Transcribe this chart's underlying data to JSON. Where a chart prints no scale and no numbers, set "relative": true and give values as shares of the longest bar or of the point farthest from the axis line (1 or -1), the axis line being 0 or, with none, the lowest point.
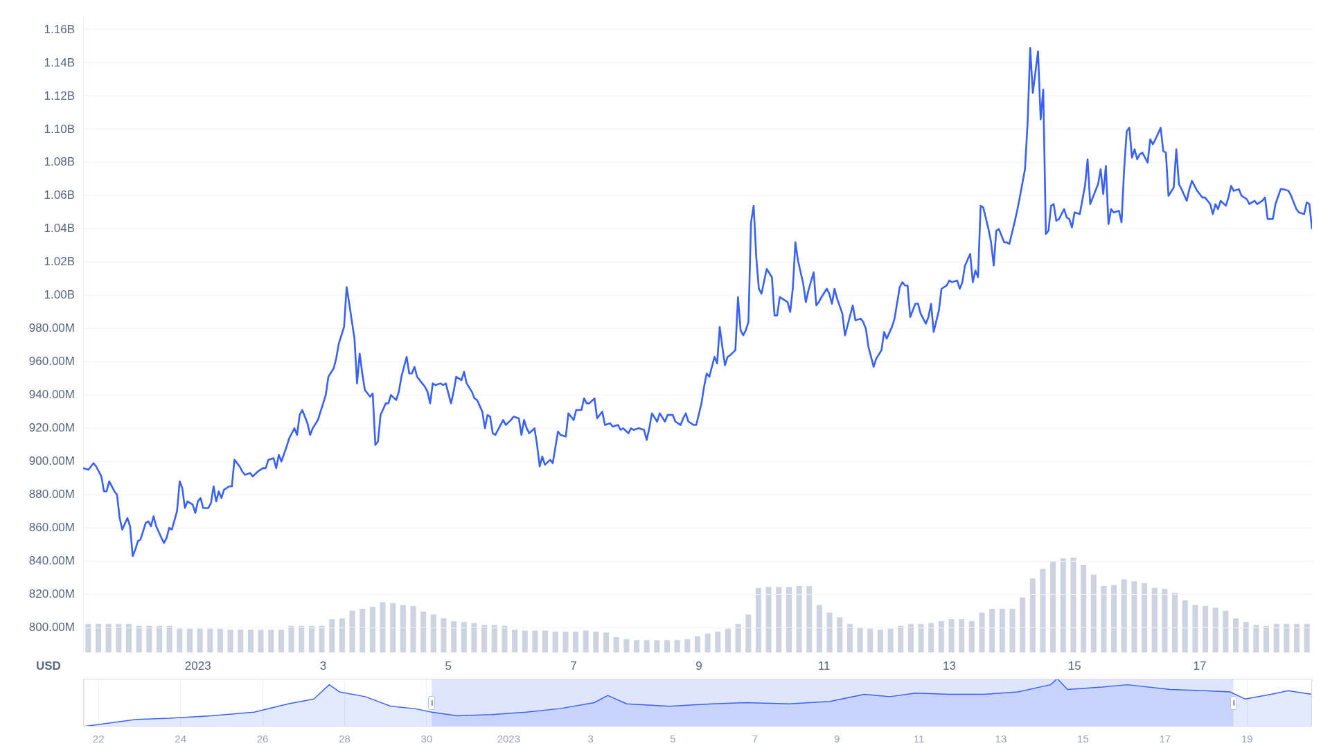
{
  "chart_data": [
    {
      "type": "line",
      "ylabel": "USD",
      "grid": "y",
      "ylim": [
        785000000.0,
        1167500000.0
      ],
      "yticks": [
        {
          "value": 800000000.0,
          "label": "800.00M"
        },
        {
          "value": 820000000.0,
          "label": "820.00M"
        },
        {
          "value": 840000000.0,
          "label": "840.00M"
        },
        {
          "value": 860000000.0,
          "label": "860.00M"
        },
        {
          "value": 880000000.0,
          "label": "880.00M"
        },
        {
          "value": 900000000.0,
          "label": "900.00M"
        },
        {
          "value": 920000000.0,
          "label": "920.00M"
        },
        {
          "value": 940000000.0,
          "label": "940.00M"
        },
        {
          "value": 960000000.0,
          "label": "960.00M"
        },
        {
          "value": 980000000.0,
          "label": "980.00M"
        },
        {
          "value": 1000000000.0,
          "label": "1.00B"
        },
        {
          "value": 1020000000.0,
          "label": "1.02B"
        },
        {
          "value": 1040000000.0,
          "label": "1.04B"
        },
        {
          "value": 1060000000.0,
          "label": "1.06B"
        },
        {
          "value": 1080000000.0,
          "label": "1.08B"
        },
        {
          "value": 1100000000.0,
          "label": "1.10B"
        },
        {
          "value": 1120000000.0,
          "label": "1.12B"
        },
        {
          "value": 1140000000.0,
          "label": "1.14B"
        },
        {
          "value": 1160000000.0,
          "label": "1.16B"
        }
      ],
      "xlim": [
        "2022-12-30T04:00",
        "2023-01-18T19:00"
      ],
      "xticks": [
        {
          "value": "2023-01-01",
          "label": "2023"
        },
        {
          "value": "2023-01-03",
          "label": "3"
        },
        {
          "value": "2023-01-05",
          "label": "5"
        },
        {
          "value": "2023-01-07",
          "label": "7"
        },
        {
          "value": "2023-01-09",
          "label": "9"
        },
        {
          "value": "2023-01-11",
          "label": "11"
        },
        {
          "value": "2023-01-13",
          "label": "13"
        },
        {
          "value": "2023-01-15",
          "label": "15"
        },
        {
          "value": "2023-01-17",
          "label": "17"
        }
      ],
      "series": [
        {
          "color": "#3861fb",
          "x": [
            "2022-12-30T04:00",
            "2022-12-30T06:00",
            "2022-12-30T08:00",
            "2022-12-30T09:00",
            "2022-12-30T11:00",
            "2022-12-30T12:00",
            "2022-12-30T13:00",
            "2022-12-30T14:00",
            "2022-12-30T16:00",
            "2022-12-30T17:00",
            "2022-12-30T18:00",
            "2022-12-30T19:00",
            "2022-12-30T21:00",
            "2022-12-30T22:00",
            "2022-12-30T23:00",
            "2022-12-31T00:00",
            "2022-12-31T01:00",
            "2022-12-31T02:00",
            "2022-12-31T04:00",
            "2022-12-31T05:00",
            "2022-12-31T06:00",
            "2022-12-31T07:00",
            "2022-12-31T08:00",
            "2022-12-31T10:00",
            "2022-12-31T11:00",
            "2022-12-31T12:00",
            "2022-12-31T13:00",
            "2022-12-31T14:00",
            "2022-12-31T16:00",
            "2022-12-31T17:00",
            "2022-12-31T18:00",
            "2022-12-31T19:00",
            "2022-12-31T20:00",
            "2022-12-31T22:00",
            "2022-12-31T23:00",
            "2023-01-01T00:00",
            "2023-01-01T01:00",
            "2023-01-01T02:00",
            "2023-01-01T04:00",
            "2023-01-01T05:00",
            "2023-01-01T06:00",
            "2023-01-01T07:00",
            "2023-01-01T08:00",
            "2023-01-01T09:00",
            "2023-01-01T10:00",
            "2023-01-01T12:00",
            "2023-01-01T13:00",
            "2023-01-01T14:00",
            "2023-01-01T16:00",
            "2023-01-01T17:00",
            "2023-01-01T18:00",
            "2023-01-01T20:00",
            "2023-01-01T21:00",
            "2023-01-01T23:00",
            "2023-01-02T01:00",
            "2023-01-02T02:00",
            "2023-01-02T03:00",
            "2023-01-02T05:00",
            "2023-01-02T06:00",
            "2023-01-02T07:00",
            "2023-01-02T08:00",
            "2023-01-02T10:00",
            "2023-01-02T11:00",
            "2023-01-02T13:00",
            "2023-01-02T14:00",
            "2023-01-02T15:00",
            "2023-01-02T16:00",
            "2023-01-02T18:00",
            "2023-01-02T19:00",
            "2023-01-02T20:00",
            "2023-01-02T22:00",
            "2023-01-02T23:00",
            "2023-01-03T01:00",
            "2023-01-03T02:00",
            "2023-01-03T04:00",
            "2023-01-03T05:00",
            "2023-01-03T06:00",
            "2023-01-03T08:00",
            "2023-01-03T09:00",
            "2023-01-03T10:00",
            "2023-01-03T12:00",
            "2023-01-03T13:00",
            "2023-01-03T14:00",
            "2023-01-03T15:00",
            "2023-01-03T16:00",
            "2023-01-03T18:00",
            "2023-01-03T19:00",
            "2023-01-03T20:00",
            "2023-01-03T21:00",
            "2023-01-03T22:00",
            "2023-01-04T00:00",
            "2023-01-04T01:00",
            "2023-01-04T02:00",
            "2023-01-04T04:00",
            "2023-01-04T05:00",
            "2023-01-04T06:00",
            "2023-01-04T08:00",
            "2023-01-04T09:00",
            "2023-01-04T10:00",
            "2023-01-04T11:00",
            "2023-01-04T12:00",
            "2023-01-04T14:00",
            "2023-01-04T15:00",
            "2023-01-04T16:00",
            "2023-01-04T17:00",
            "2023-01-04T18:00",
            "2023-01-04T19:00",
            "2023-01-04T21:00",
            "2023-01-04T22:00",
            "2023-01-04T23:00",
            "2023-01-05T01:00",
            "2023-01-05T02:00",
            "2023-01-05T03:00",
            "2023-01-05T05:00",
            "2023-01-05T06:00",
            "2023-01-05T07:00",
            "2023-01-05T09:00",
            "2023-01-05T10:00",
            "2023-01-05T11:00",
            "2023-01-05T13:00",
            "2023-01-05T14:00",
            "2023-01-05T15:00",
            "2023-01-05T16:00",
            "2023-01-05T17:00",
            "2023-01-05T18:00",
            "2023-01-05T20:00",
            "2023-01-05T21:00",
            "2023-01-05T22:00",
            "2023-01-06T00:00",
            "2023-01-06T01:00",
            "2023-01-06T03:00",
            "2023-01-06T04:00",
            "2023-01-06T05:00",
            "2023-01-06T06:00",
            "2023-01-06T07:00",
            "2023-01-06T09:00",
            "2023-01-06T10:00",
            "2023-01-06T11:00",
            "2023-01-06T12:00",
            "2023-01-06T13:00",
            "2023-01-06T15:00",
            "2023-01-06T16:00",
            "2023-01-06T18:00",
            "2023-01-06T19:00",
            "2023-01-06T21:00",
            "2023-01-06T22:00",
            "2023-01-07T00:00",
            "2023-01-07T01:00",
            "2023-01-07T03:00",
            "2023-01-07T04:00",
            "2023-01-07T05:00",
            "2023-01-07T06:00",
            "2023-01-07T08:00",
            "2023-01-07T09:00",
            "2023-01-07T11:00",
            "2023-01-07T12:00",
            "2023-01-07T14:00",
            "2023-01-07T15:00",
            "2023-01-07T17:00",
            "2023-01-07T18:00",
            "2023-01-07T19:00",
            "2023-01-07T21:00",
            "2023-01-07T22:00",
            "2023-01-07T23:00",
            "2023-01-08T01:00",
            "2023-01-08T03:00",
            "2023-01-08T04:00",
            "2023-01-08T05:00",
            "2023-01-08T06:00",
            "2023-01-08T08:00",
            "2023-01-08T09:00",
            "2023-01-08T11:00",
            "2023-01-08T12:00",
            "2023-01-08T14:00",
            "2023-01-08T15:00",
            "2023-01-08T17:00",
            "2023-01-08T18:00",
            "2023-01-08T19:00",
            "2023-01-08T20:00",
            "2023-01-08T22:00",
            "2023-01-08T23:00",
            "2023-01-09T01:00",
            "2023-01-09T02:00",
            "2023-01-09T03:00",
            "2023-01-09T04:00",
            "2023-01-09T06:00",
            "2023-01-09T07:00",
            "2023-01-09T08:00",
            "2023-01-09T09:00",
            "2023-01-09T10:00",
            "2023-01-09T11:00",
            "2023-01-09T12:00",
            "2023-01-09T14:00",
            "2023-01-09T15:00",
            "2023-01-09T16:00",
            "2023-01-09T17:00",
            "2023-01-09T18:00",
            "2023-01-09T19:00",
            "2023-01-09T20:00",
            "2023-01-09T21:00",
            "2023-01-09T22:00",
            "2023-01-09T23:00",
            "2023-01-10T00:00",
            "2023-01-10T02:00",
            "2023-01-10T04:00",
            "2023-01-10T05:00",
            "2023-01-10T06:00",
            "2023-01-10T07:00",
            "2023-01-10T08:00",
            "2023-01-10T10:00",
            "2023-01-10T11:00",
            "2023-01-10T12:00",
            "2023-01-10T13:00",
            "2023-01-10T14:00",
            "2023-01-10T16:00",
            "2023-01-10T17:00",
            "2023-01-10T18:00",
            "2023-01-10T20:00",
            "2023-01-10T21:00",
            "2023-01-10T22:00",
            "2023-01-10T23:00",
            "2023-01-11T01:00",
            "2023-01-11T02:00",
            "2023-01-11T03:00",
            "2023-01-11T04:00",
            "2023-01-11T05:00",
            "2023-01-11T07:00",
            "2023-01-11T08:00",
            "2023-01-11T09:00",
            "2023-01-11T11:00",
            "2023-01-11T12:00",
            "2023-01-11T14:00",
            "2023-01-11T15:00",
            "2023-01-11T16:00",
            "2023-01-11T17:00",
            "2023-01-11T19:00",
            "2023-01-11T20:00",
            "2023-01-11T22:00",
            "2023-01-11T23:00",
            "2023-01-12T00:00",
            "2023-01-12T02:00",
            "2023-01-12T03:00",
            "2023-01-12T05:00",
            "2023-01-12T06:00",
            "2023-01-12T07:00",
            "2023-01-12T08:00",
            "2023-01-12T09:00",
            "2023-01-12T11:00",
            "2023-01-12T12:00",
            "2023-01-12T13:00",
            "2023-01-12T15:00",
            "2023-01-12T16:00",
            "2023-01-12T17:00",
            "2023-01-12T18:00",
            "2023-01-12T20:00",
            "2023-01-12T21:00",
            "2023-01-12T23:00",
            "2023-01-13T00:00",
            "2023-01-13T01:00",
            "2023-01-13T03:00",
            "2023-01-13T04:00",
            "2023-01-13T05:00",
            "2023-01-13T06:00",
            "2023-01-13T08:00",
            "2023-01-13T09:00",
            "2023-01-13T10:00",
            "2023-01-13T11:00",
            "2023-01-13T12:00",
            "2023-01-13T13:00",
            "2023-01-13T15:00",
            "2023-01-13T16:00",
            "2023-01-13T17:00",
            "2023-01-13T18:00",
            "2023-01-13T19:00",
            "2023-01-13T21:00",
            "2023-01-13T22:00",
            "2023-01-13T23:00",
            "2023-01-14T01:00",
            "2023-01-14T02:00",
            "2023-01-14T03:00",
            "2023-01-14T05:00",
            "2023-01-14T06:00",
            "2023-01-14T07:00",
            "2023-01-14T08:00",
            "2023-01-14T10:00",
            "2023-01-14T11:00",
            "2023-01-14T12:00",
            "2023-01-14T13:00",
            "2023-01-14T14:00",
            "2023-01-14T15:00",
            "2023-01-14T16:00",
            "2023-01-14T17:00",
            "2023-01-14T18:00",
            "2023-01-14T20:00",
            "2023-01-14T21:00",
            "2023-01-14T22:00",
            "2023-01-14T23:00",
            "2023-01-15T00:00",
            "2023-01-15T02:00",
            "2023-01-15T04:00",
            "2023-01-15T05:00",
            "2023-01-15T06:00",
            "2023-01-15T08:00",
            "2023-01-15T09:00",
            "2023-01-15T10:00",
            "2023-01-15T11:00",
            "2023-01-15T12:00",
            "2023-01-15T13:00",
            "2023-01-15T14:00",
            "2023-01-15T15:00",
            "2023-01-15T17:00",
            "2023-01-15T18:00",
            "2023-01-15T19:00",
            "2023-01-15T20:00",
            "2023-01-15T21:00",
            "2023-01-15T22:00",
            "2023-01-15T23:00",
            "2023-01-16T00:00",
            "2023-01-16T01:00",
            "2023-01-16T02:00",
            "2023-01-16T04:00",
            "2023-01-16T05:00",
            "2023-01-16T06:00",
            "2023-01-16T07:00",
            "2023-01-16T09:00",
            "2023-01-16T10:00",
            "2023-01-16T11:00",
            "2023-01-16T12:00",
            "2023-01-16T14:00",
            "2023-01-16T15:00",
            "2023-01-16T16:00",
            "2023-01-16T17:00",
            "2023-01-16T19:00",
            "2023-01-16T20:00",
            "2023-01-16T21:00",
            "2023-01-16T23:00",
            "2023-01-17T01:00",
            "2023-01-17T02:00",
            "2023-01-17T04:00",
            "2023-01-17T05:00",
            "2023-01-17T06:00",
            "2023-01-17T07:00",
            "2023-01-17T08:00",
            "2023-01-17T10:00",
            "2023-01-17T11:00",
            "2023-01-17T12:00",
            "2023-01-17T13:00",
            "2023-01-17T15:00",
            "2023-01-17T16:00",
            "2023-01-17T18:00",
            "2023-01-17T19:00",
            "2023-01-17T21:00",
            "2023-01-17T22:00",
            "2023-01-18T00:00",
            "2023-01-18T01:00",
            "2023-01-18T02:00",
            "2023-01-18T04:00",
            "2023-01-18T05:00",
            "2023-01-18T07:00",
            "2023-01-18T08:00",
            "2023-01-18T10:00",
            "2023-01-18T11:00",
            "2023-01-18T13:00",
            "2023-01-18T14:00",
            "2023-01-18T16:00",
            "2023-01-18T17:00",
            "2023-01-18T18:00",
            "2023-01-18T19:00"
          ],
          "values": [
            896000000.0,
            895000000.0,
            899000000.0,
            897000000.0,
            891000000.0,
            882000000.0,
            882000000.0,
            888000000.0,
            882000000.0,
            880000000.0,
            866000000.0,
            859000000.0,
            866000000.0,
            861000000.0,
            843000000.0,
            847000000.0,
            852000000.0,
            853000000.0,
            863000000.0,
            864000000.0,
            861000000.0,
            867000000.0,
            861000000.0,
            854000000.0,
            851000000.0,
            854000000.0,
            860000000.0,
            859000000.0,
            870000000.0,
            888000000.0,
            884000000.0,
            872000000.0,
            876000000.0,
            874000000.0,
            869000000.0,
            876000000.0,
            878000000.0,
            872000000.0,
            872000000.0,
            875000000.0,
            885000000.0,
            876000000.0,
            882000000.0,
            878000000.0,
            883000000.0,
            885000000.0,
            885000000.0,
            901000000.0,
            897000000.0,
            894000000.0,
            892000000.0,
            893000000.0,
            891000000.0,
            894000000.0,
            896000000.0,
            896000000.0,
            901000000.0,
            902000000.0,
            896000000.0,
            904000000.0,
            900000000.0,
            909000000.0,
            914000000.0,
            920000000.0,
            916000000.0,
            928000000.0,
            931000000.0,
            923000000.0,
            916000000.0,
            920000000.0,
            925000000.0,
            930000000.0,
            940000000.0,
            951000000.0,
            956000000.0,
            962000000.0,
            971000000.0,
            981000000.0,
            1005000000.0,
            995000000.0,
            974000000.0,
            947000000.0,
            965000000.0,
            953000000.0,
            943000000.0,
            939000000.0,
            941000000.0,
            910000000.0,
            912000000.0,
            928000000.0,
            935000000.0,
            935000000.0,
            940000000.0,
            937000000.0,
            942000000.0,
            951000000.0,
            963000000.0,
            953000000.0,
            953000000.0,
            957000000.0,
            951000000.0,
            947000000.0,
            945000000.0,
            942000000.0,
            935000000.0,
            947000000.0,
            946000000.0,
            947000000.0,
            946000000.0,
            947000000.0,
            935000000.0,
            942000000.0,
            951000000.0,
            949000000.0,
            954000000.0,
            947000000.0,
            942000000.0,
            938000000.0,
            937000000.0,
            930000000.0,
            920000000.0,
            928000000.0,
            927000000.0,
            917000000.0,
            916000000.0,
            922000000.0,
            925000000.0,
            922000000.0,
            925000000.0,
            927000000.0,
            926000000.0,
            916000000.0,
            925000000.0,
            920000000.0,
            917000000.0,
            920000000.0,
            910000000.0,
            897000000.0,
            903000000.0,
            898000000.0,
            901000000.0,
            899000000.0,
            918000000.0,
            916000000.0,
            915000000.0,
            929000000.0,
            925000000.0,
            931000000.0,
            931000000.0,
            938000000.0,
            935000000.0,
            935000000.0,
            938000000.0,
            926000000.0,
            930000000.0,
            922000000.0,
            923000000.0,
            921000000.0,
            922000000.0,
            919000000.0,
            920000000.0,
            917000000.0,
            920000000.0,
            919000000.0,
            920000000.0,
            919000000.0,
            913000000.0,
            920000000.0,
            929000000.0,
            924000000.0,
            929000000.0,
            924000000.0,
            928000000.0,
            928000000.0,
            924000000.0,
            922000000.0,
            926000000.0,
            929000000.0,
            924000000.0,
            922000000.0,
            922000000.0,
            935000000.0,
            945000000.0,
            953000000.0,
            951000000.0,
            963000000.0,
            959000000.0,
            981000000.0,
            969000000.0,
            958000000.0,
            963000000.0,
            964000000.0,
            967000000.0,
            999000000.0,
            979000000.0,
            976000000.0,
            979000000.0,
            984000000.0,
            1044000000.0,
            1054000000.0,
            1023000000.0,
            1004000000.0,
            1001000000.0,
            1016000000.0,
            1011000000.0,
            988000000.0,
            988000000.0,
            999000000.0,
            998000000.0,
            996000000.0,
            990000000.0,
            1004000000.0,
            1032000000.0,
            1021000000.0,
            1007000000.0,
            996000000.0,
            1003000000.0,
            1014000000.0,
            994000000.0,
            996000000.0,
            999000000.0,
            1004000000.0,
            1001000000.0,
            995000000.0,
            1004000000.0,
            998000000.0,
            989000000.0,
            976000000.0,
            982000000.0,
            994000000.0,
            985000000.0,
            986000000.0,
            984000000.0,
            980000000.0,
            969000000.0,
            957000000.0,
            962000000.0,
            967000000.0,
            978000000.0,
            974000000.0,
            981000000.0,
            986000000.0,
            1005000000.0,
            1008000000.0,
            1006000000.0,
            1006000000.0,
            987000000.0,
            995000000.0,
            995000000.0,
            989000000.0,
            983000000.0,
            987000000.0,
            995000000.0,
            978000000.0,
            991000000.0,
            1004000000.0,
            1006000000.0,
            1009000000.0,
            1008000000.0,
            1009000000.0,
            1004000000.0,
            1008000000.0,
            1018000000.0,
            1025000000.0,
            1008000000.0,
            1015000000.0,
            1011000000.0,
            1054000000.0,
            1053000000.0,
            1040000000.0,
            1032000000.0,
            1018000000.0,
            1039000000.0,
            1040000000.0,
            1032000000.0,
            1032000000.0,
            1031000000.0,
            1044000000.0,
            1051000000.0,
            1059000000.0,
            1076000000.0,
            1104000000.0,
            1149000000.0,
            1122000000.0,
            1147000000.0,
            1106000000.0,
            1124000000.0,
            1037000000.0,
            1039000000.0,
            1054000000.0,
            1055000000.0,
            1045000000.0,
            1046000000.0,
            1052000000.0,
            1047000000.0,
            1046000000.0,
            1041000000.0,
            1050000000.0,
            1049000000.0,
            1066000000.0,
            1082000000.0,
            1055000000.0,
            1063000000.0,
            1067000000.0,
            1076000000.0,
            1061000000.0,
            1078000000.0,
            1043000000.0,
            1052000000.0,
            1050000000.0,
            1051000000.0,
            1044000000.0,
            1076000000.0,
            1099000000.0,
            1101000000.0,
            1083000000.0,
            1088000000.0,
            1082000000.0,
            1085000000.0,
            1086000000.0,
            1080000000.0,
            1094000000.0,
            1091000000.0,
            1094000000.0,
            1101000000.0,
            1087000000.0,
            1086000000.0,
            1060000000.0,
            1065000000.0,
            1088000000.0,
            1067000000.0,
            1064000000.0,
            1057000000.0,
            1064000000.0,
            1069000000.0,
            1063000000.0,
            1059000000.0,
            1059000000.0,
            1055000000.0,
            1049000000.0,
            1055000000.0,
            1052000000.0,
            1057000000.0,
            1054000000.0,
            1059000000.0,
            1066000000.0,
            1063000000.0,
            1064000000.0,
            1060000000.0,
            1058000000.0,
            1055000000.0,
            1057000000.0,
            1055000000.0,
            1057000000.0,
            1059000000.0,
            1046000000.0,
            1046000000.0,
            1055000000.0,
            1064000000.0,
            1064000000.0,
            1063000000.0,
            1060000000.0,
            1052000000.0,
            1050000000.0,
            1049000000.0,
            1056000000.0,
            1055000000.0,
            1040000000.0
          ]
        }
      ]
    },
    {
      "type": "bar",
      "relative": true,
      "categories": [
        null,
        null,
        null,
        null,
        null,
        null,
        null,
        null,
        null,
        null,
        null,
        null,
        null,
        null,
        null,
        null,
        null,
        null,
        null,
        null,
        null,
        null,
        null,
        null,
        null,
        null,
        null,
        null,
        null,
        null,
        null,
        null,
        null,
        null,
        null,
        null,
        null,
        null,
        null,
        null,
        null,
        null,
        null,
        null,
        null,
        null,
        null,
        null,
        null,
        null,
        null,
        null,
        null,
        null,
        null,
        null,
        null,
        null,
        null,
        null,
        null,
        null,
        null,
        null,
        null,
        null,
        null,
        null,
        null,
        null,
        null,
        null,
        null,
        null,
        null,
        null,
        null,
        null,
        null,
        null,
        null,
        null,
        null,
        null,
        null,
        null,
        null,
        null,
        null,
        null,
        null,
        null,
        null,
        null,
        null,
        null,
        null,
        null,
        null,
        null,
        null,
        null,
        null,
        null,
        null,
        null,
        null,
        null,
        null,
        null,
        null,
        null,
        null,
        null,
        null,
        null,
        null,
        null,
        null,
        null,
        null
      ],
      "series": [
        {
          "color": "#cdd3e1",
          "values": [
            0.3,
            0.3,
            0.3,
            0.3,
            0.3,
            0.28,
            0.28,
            0.28,
            0.28,
            0.25,
            0.25,
            0.25,
            0.25,
            0.25,
            0.24,
            0.24,
            0.24,
            0.24,
            0.24,
            0.24,
            0.28,
            0.28,
            0.28,
            0.28,
            0.35,
            0.36,
            0.44,
            0.46,
            0.48,
            0.53,
            0.52,
            0.5,
            0.49,
            0.43,
            0.4,
            0.36,
            0.33,
            0.32,
            0.31,
            0.29,
            0.29,
            0.28,
            0.24,
            0.23,
            0.23,
            0.23,
            0.22,
            0.22,
            0.22,
            0.23,
            0.22,
            0.21,
            0.16,
            0.14,
            0.13,
            0.13,
            0.13,
            0.13,
            0.13,
            0.14,
            0.17,
            0.2,
            0.22,
            0.25,
            0.3,
            0.4,
            0.68,
            0.69,
            0.69,
            0.69,
            0.7,
            0.7,
            0.5,
            0.42,
            0.37,
            0.3,
            0.26,
            0.25,
            0.24,
            0.25,
            0.28,
            0.3,
            0.3,
            0.31,
            0.33,
            0.35,
            0.35,
            0.33,
            0.42,
            0.46,
            0.46,
            0.46,
            0.58,
            0.78,
            0.88,
            0.96,
            0.99,
            1,
            0.92,
            0.82,
            0.7,
            0.71,
            0.77,
            0.75,
            0.73,
            0.68,
            0.67,
            0.63,
            0.55,
            0.5,
            0.49,
            0.47,
            0.44,
            0.36,
            0.32,
            0.29,
            0.28,
            0.3,
            0.3,
            0.3,
            0.3
          ]
        }
      ]
    },
    {
      "type": "area",
      "relative": true,
      "grid": "x",
      "xlim": [
        "2022-12-21T15:00",
        "2023-01-20T14:00"
      ],
      "xticks": [
        {
          "value": "2022-12-22",
          "label": "22"
        },
        {
          "value": "2022-12-24",
          "label": "24"
        },
        {
          "value": "2022-12-26",
          "label": "26"
        },
        {
          "value": "2022-12-28",
          "label": "28"
        },
        {
          "value": "2022-12-30",
          "label": "30"
        },
        {
          "value": "2023-01-01",
          "label": "2023"
        },
        {
          "value": "2023-01-03",
          "label": "3"
        },
        {
          "value": "2023-01-05",
          "label": "5"
        },
        {
          "value": "2023-01-07",
          "label": "7"
        },
        {
          "value": "2023-01-09",
          "label": "9"
        },
        {
          "value": "2023-01-11",
          "label": "11"
        },
        {
          "value": "2023-01-13",
          "label": "13"
        },
        {
          "value": "2023-01-15",
          "label": "15"
        },
        {
          "value": "2023-01-17",
          "label": "17"
        },
        {
          "value": "2023-01-19",
          "label": "19"
        }
      ],
      "bands": [
        {
          "axis": "x",
          "from": "2022-12-30T03:00",
          "to": "2023-01-18T16:00",
          "color": "#dfe5fc"
        }
      ],
      "series": [
        {
          "color": "#3861fb",
          "x": [
            "2022-12-21T15:00",
            "2022-12-22T07:00",
            "2022-12-22T22:00",
            "2022-12-23T18:00",
            "2022-12-24T18:00",
            "2022-12-25T19:00",
            "2022-12-26T15:00",
            "2022-12-27T06:00",
            "2022-12-27T15:00",
            "2022-12-27T21:00",
            "2022-12-28T12:00",
            "2022-12-29T03:00",
            "2022-12-29T17:00",
            "2022-12-30T03:00",
            "2022-12-30T18:00",
            "2022-12-31T14:00",
            "2023-01-01T10:00",
            "2023-01-02T06:00",
            "2023-01-03T02:00",
            "2023-01-03T10:00",
            "2023-01-03T21:00",
            "2023-01-04T22:00",
            "2023-01-05T23:00",
            "2023-01-06T19:00",
            "2023-01-07T20:00",
            "2023-01-08T20:00",
            "2023-01-09T16:00",
            "2023-01-10T07:00",
            "2023-01-10T22:00",
            "2023-01-11T18:00",
            "2023-01-12T14:00",
            "2023-01-13T10:00",
            "2023-01-14T05:00",
            "2023-01-14T09:00",
            "2023-01-14T15:00",
            "2023-01-15T11:00",
            "2023-01-16T02:00",
            "2023-01-17T03:00",
            "2023-01-17T23:00",
            "2023-01-18T14:00",
            "2023-01-18T23:00",
            "2023-01-19T14:00",
            "2023-01-20T00:00",
            "2023-01-20T14:00"
          ],
          "values": [
            0,
            0.075,
            0.15,
            0.175,
            0.225,
            0.3,
            0.475,
            0.575,
            0.875,
            0.725,
            0.625,
            0.425,
            0.375,
            0.3,
            0.225,
            0.25,
            0.3,
            0.375,
            0.5,
            0.65,
            0.475,
            0.425,
            0.475,
            0.5,
            0.475,
            0.525,
            0.675,
            0.625,
            0.7,
            0.675,
            0.675,
            0.725,
            0.875,
            1,
            0.775,
            0.825,
            0.875,
            0.775,
            0.75,
            0.725,
            0.575,
            0.675,
            0.75,
            0.675
          ]
        }
      ]
    }
  ]
}
